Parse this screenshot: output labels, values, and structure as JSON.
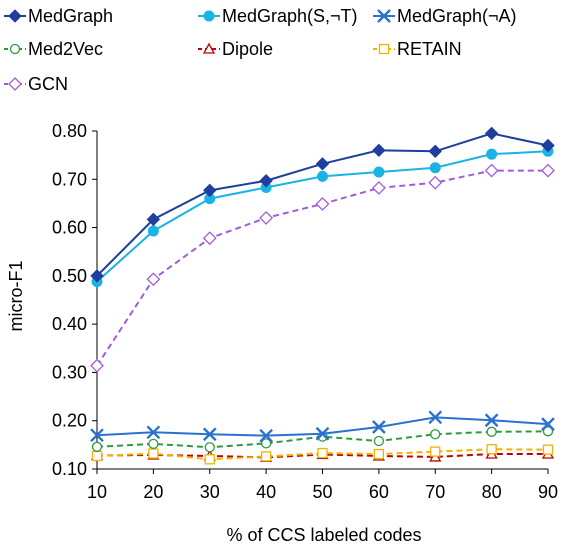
{
  "chart_data": {
    "type": "line",
    "title": "",
    "xlabel": "% of CCS labeled codes",
    "ylabel": "micro-F1",
    "x": [
      10,
      20,
      30,
      40,
      50,
      60,
      70,
      80,
      90
    ],
    "xlim": [
      10,
      90
    ],
    "ylim": [
      0.1,
      0.8
    ],
    "yticks": [
      "0.10",
      "0.20",
      "0.30",
      "0.40",
      "0.50",
      "0.60",
      "0.70",
      "0.80"
    ],
    "xticks": [
      "10",
      "20",
      "30",
      "40",
      "50",
      "60",
      "70",
      "80",
      "90"
    ],
    "grid": false,
    "legend": "top",
    "series": [
      {
        "name": "MedGraph",
        "color": "#1f3f9e",
        "marker": "diamond-filled",
        "dash": "solid",
        "values": [
          0.5,
          0.617,
          0.677,
          0.697,
          0.732,
          0.76,
          0.758,
          0.795,
          0.77
        ]
      },
      {
        "name": "MedGraph(S,¬T)",
        "color": "#1ab3e6",
        "marker": "circle-filled",
        "dash": "solid",
        "values": [
          0.488,
          0.593,
          0.66,
          0.683,
          0.706,
          0.715,
          0.724,
          0.752,
          0.758
        ]
      },
      {
        "name": "MedGraph(¬A)",
        "color": "#2b72d0",
        "marker": "x",
        "dash": "solid",
        "values": [
          0.17,
          0.176,
          0.172,
          0.169,
          0.173,
          0.187,
          0.207,
          0.201,
          0.193
        ]
      },
      {
        "name": "Med2Vec",
        "color": "#2e9a3e",
        "marker": "circle-open",
        "dash": "dashed",
        "values": [
          0.146,
          0.152,
          0.145,
          0.153,
          0.167,
          0.158,
          0.172,
          0.177,
          0.178
        ]
      },
      {
        "name": "Dipole",
        "color": "#c00000",
        "marker": "triangle-open",
        "dash": "dashed",
        "values": [
          0.128,
          0.129,
          0.127,
          0.124,
          0.13,
          0.127,
          0.125,
          0.131,
          0.131
        ]
      },
      {
        "name": "RETAIN",
        "color": "#f0b400",
        "marker": "square-open",
        "dash": "dashed",
        "values": [
          0.127,
          0.132,
          0.12,
          0.126,
          0.133,
          0.131,
          0.136,
          0.141,
          0.14
        ]
      },
      {
        "name": "GCN",
        "color": "#a15cdb",
        "marker": "diamond-open",
        "dash": "dashed",
        "values": [
          0.314,
          0.493,
          0.578,
          0.62,
          0.649,
          0.682,
          0.693,
          0.718,
          0.718
        ]
      }
    ]
  }
}
